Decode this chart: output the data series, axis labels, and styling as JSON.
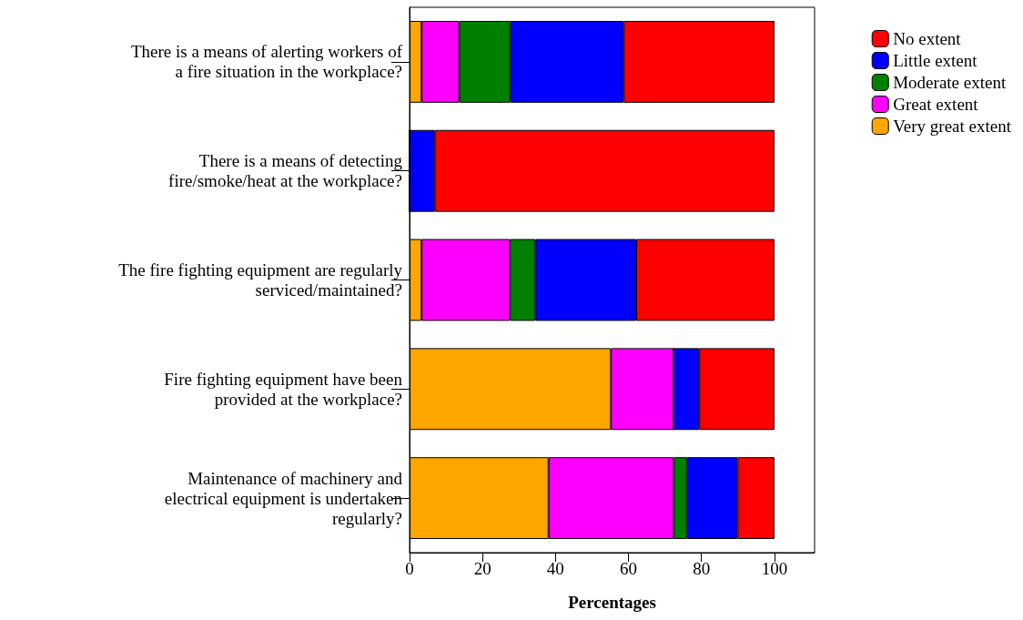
{
  "chart_data": {
    "type": "bar",
    "orientation": "horizontal",
    "stacked": true,
    "xlabel": "Percentages",
    "categories": [
      "There is a means of alerting workers of\na fire situation in the workplace?",
      "There is a means of detecting\nfire/smoke/heat at the workplace?",
      "The fire fighting equipment are regularly\nserviced/maintained?",
      "Fire fighting equipment have been\nprovided at the workplace?",
      "Maintenance of machinery and\nelectrical equipment is undertaken\nregularly?"
    ],
    "series": [
      {
        "name": "Very great extent",
        "color": "#ffa500",
        "values": [
          3.3,
          0,
          3.3,
          55.2,
          38.1
        ]
      },
      {
        "name": "Great extent",
        "color": "#ff00ff",
        "values": [
          10.3,
          0,
          24.2,
          17.2,
          34.3
        ]
      },
      {
        "name": "Moderate extent",
        "color": "#008000",
        "values": [
          14.0,
          0,
          7.0,
          0,
          3.6
        ]
      },
      {
        "name": "Little extent",
        "color": "#0000ff",
        "values": [
          31.1,
          6.9,
          27.6,
          7.0,
          13.9
        ]
      },
      {
        "name": "No extent",
        "color": "#ff0000",
        "values": [
          41.3,
          93.1,
          37.9,
          20.6,
          10.1
        ]
      }
    ],
    "xlim": [
      0,
      111
    ],
    "xticks": [
      0,
      20,
      40,
      60,
      80,
      100
    ],
    "grid": false,
    "legend": "top right"
  }
}
